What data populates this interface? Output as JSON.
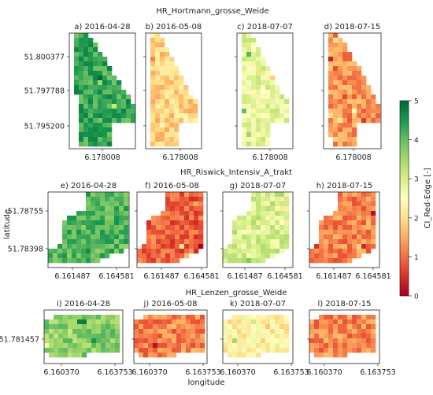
{
  "figure": {
    "xlabel": "longitude",
    "ylabel": "latitude",
    "colorbar": {
      "label": "CI_Red-Edge [-]",
      "ticks": [
        "0",
        "1",
        "2",
        "3",
        "4",
        "5"
      ],
      "range": [
        0,
        5
      ],
      "colormap": "RdYlGn",
      "stops": [
        "#a50026",
        "#d73027",
        "#f46d43",
        "#fdae61",
        "#fee08b",
        "#ffffbf",
        "#d9ef8b",
        "#a6d96a",
        "#66bd63",
        "#1a9850",
        "#006837"
      ]
    }
  },
  "chart_data": [
    {
      "type": "heatmap",
      "row_title": "HR_Hortmann_grosse_Weide",
      "y_ticks": [
        "51.800377",
        "51.797788",
        "51.795200"
      ],
      "x_ticks": [
        "6.178008"
      ],
      "panels": [
        {
          "label": "a) 2016-04-28",
          "mean_value": 4.3
        },
        {
          "label": "b) 2016-05-08",
          "mean_value": 1.9
        },
        {
          "label": "c) 2018-07-07",
          "mean_value": 2.8
        },
        {
          "label": "d) 2018-07-15",
          "mean_value": 1.3
        }
      ]
    },
    {
      "type": "heatmap",
      "row_title": "HR_Riswick_Intensiv_A_trakt",
      "y_ticks": [
        "51.78755",
        "51.78398"
      ],
      "x_ticks": [
        "6.161487",
        "6.164581"
      ],
      "panels": [
        {
          "label": "e) 2016-04-28",
          "mean_value": 4.1
        },
        {
          "label": "f) 2016-05-08",
          "mean_value": 0.9
        },
        {
          "label": "g) 2018-07-07",
          "mean_value": 3.0
        },
        {
          "label": "h) 2018-07-15",
          "mean_value": 1.2
        }
      ]
    },
    {
      "type": "heatmap",
      "row_title": "HR_Lenzen_grosse_Weide",
      "y_ticks": [
        "51.781457"
      ],
      "x_ticks": [
        "6.160370",
        "6.163753"
      ],
      "panels": [
        {
          "label": "i) 2016-04-28",
          "mean_value": 3.7
        },
        {
          "label": "j) 2016-05-08",
          "mean_value": 1.2
        },
        {
          "label": "k) 2018-07-07",
          "mean_value": 2.3
        },
        {
          "label": "l) 2018-07-15",
          "mean_value": 1.2
        }
      ]
    }
  ]
}
